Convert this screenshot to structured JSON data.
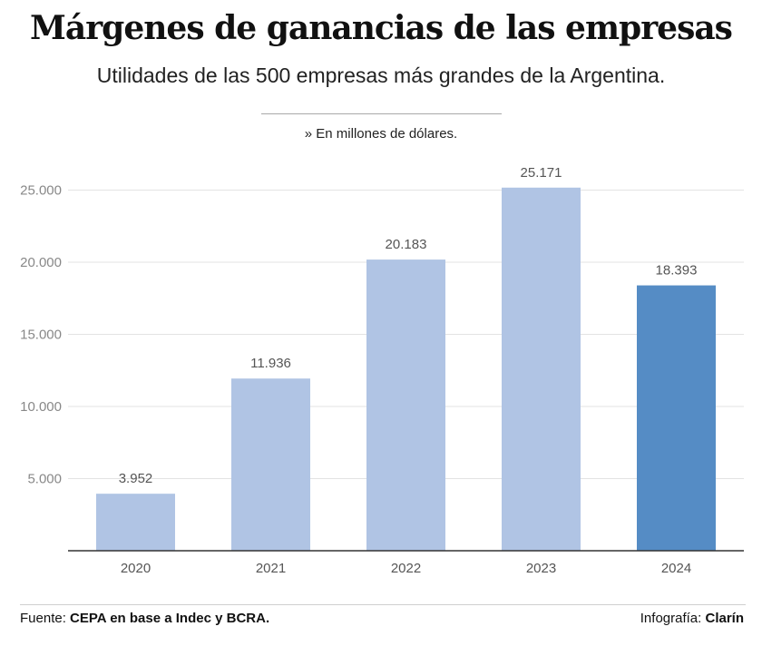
{
  "header": {
    "title": "Márgenes de ganancias de las empresas",
    "subtitle": "Utilidades de las 500 empresas más grandes de la Argentina.",
    "note": "» En millones de dólares."
  },
  "chart_data": {
    "type": "bar",
    "categories": [
      "2020",
      "2021",
      "2022",
      "2023",
      "2024"
    ],
    "values": [
      3952,
      11936,
      20183,
      25171,
      18393
    ],
    "value_labels": [
      "3.952",
      "11.936",
      "20.183",
      "25.171",
      "18.393"
    ],
    "yticks": [
      5000,
      10000,
      15000,
      20000,
      25000
    ],
    "ytick_labels": [
      "5.000",
      "10.000",
      "15.000",
      "20.000",
      "25.000"
    ],
    "ylim": [
      0,
      25000
    ],
    "grid": true,
    "bar_colors": [
      "#b0c4e4",
      "#b0c4e4",
      "#b0c4e4",
      "#b0c4e4",
      "#558cc5"
    ],
    "xlabel": "",
    "ylabel": ""
  },
  "footer": {
    "source_prefix": "Fuente: ",
    "source_text": "CEPA en base a Indec y BCRA.",
    "credit_prefix": "Infografía: ",
    "credit_text": "Clarín"
  },
  "colors": {
    "gridline": "#e3e3e3",
    "axis": "#333333"
  }
}
